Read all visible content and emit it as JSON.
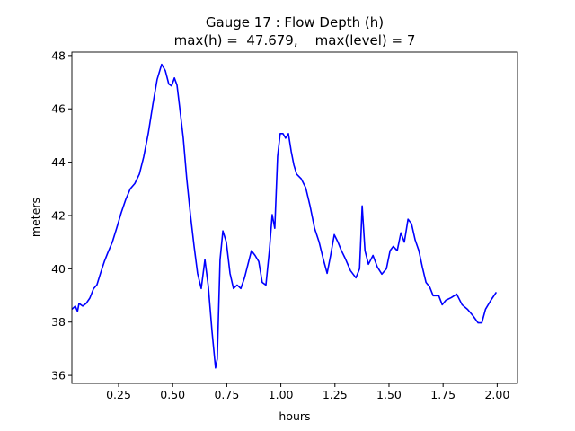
{
  "chart_data": {
    "type": "line",
    "title": [
      "Gauge 17 : Flow Depth (h)",
      "max(h) =  47.679,    max(level) = 7"
    ],
    "xlabel": "hours",
    "ylabel": "meters",
    "xlim": [
      0.034,
      2.094
    ],
    "ylim": [
      35.7,
      48.13
    ],
    "xticks": [
      0.25,
      {
        "value": 0.5,
        "label": "0.50"
      },
      {
        "value": 0.75,
        "label": "0.75"
      },
      {
        "value": 1.0,
        "label": "1.00"
      },
      1.25,
      {
        "value": 1.5,
        "label": "1.50"
      },
      1.75,
      {
        "value": 2.0,
        "label": "2.00"
      }
    ],
    "yticks": [
      36,
      38,
      40,
      42,
      44,
      46,
      48
    ],
    "grid": false,
    "x": [
      0.034,
      0.05,
      0.06,
      0.067,
      0.084,
      0.1,
      0.117,
      0.134,
      0.15,
      0.167,
      0.184,
      0.2,
      0.221,
      0.242,
      0.262,
      0.283,
      0.304,
      0.325,
      0.346,
      0.366,
      0.387,
      0.408,
      0.428,
      0.449,
      0.466,
      0.482,
      0.495,
      0.508,
      0.52,
      0.532,
      0.549,
      0.565,
      0.582,
      0.599,
      0.615,
      0.632,
      0.649,
      0.665,
      0.682,
      0.698,
      0.706,
      0.719,
      0.732,
      0.748,
      0.765,
      0.781,
      0.798,
      0.815,
      0.832,
      0.848,
      0.864,
      0.881,
      0.898,
      0.914,
      0.931,
      0.947,
      0.96,
      0.972,
      0.985,
      0.997,
      1.01,
      1.022,
      1.035,
      1.048,
      1.06,
      1.073,
      1.094,
      1.115,
      1.135,
      1.156,
      1.177,
      1.197,
      1.214,
      1.23,
      1.247,
      1.264,
      1.28,
      1.297,
      1.322,
      1.347,
      1.364,
      1.376,
      1.389,
      1.405,
      1.426,
      1.446,
      1.467,
      1.488,
      1.505,
      1.52,
      1.538,
      1.555,
      1.571,
      1.588,
      1.604,
      1.621,
      1.638,
      1.654,
      1.671,
      1.688,
      1.704,
      1.73,
      1.746,
      1.763,
      1.788,
      1.813,
      1.838,
      1.863,
      1.888,
      1.912,
      1.929,
      1.946,
      1.971,
      1.996
    ],
    "series": [
      {
        "name": "h",
        "color": "#0000ff",
        "values": [
          38.48,
          38.6,
          38.4,
          38.7,
          38.6,
          38.7,
          38.9,
          39.25,
          39.4,
          39.85,
          40.27,
          40.6,
          41.0,
          41.55,
          42.1,
          42.6,
          43.0,
          43.2,
          43.55,
          44.2,
          45.07,
          46.15,
          47.1,
          47.67,
          47.43,
          46.93,
          46.86,
          47.16,
          46.89,
          46.08,
          44.9,
          43.38,
          42.03,
          40.84,
          39.83,
          39.26,
          40.34,
          39.32,
          37.64,
          36.28,
          36.62,
          40.34,
          41.42,
          41.0,
          39.83,
          39.26,
          39.39,
          39.26,
          39.66,
          40.17,
          40.68,
          40.5,
          40.27,
          39.49,
          39.39,
          40.68,
          42.03,
          41.52,
          44.22,
          45.07,
          45.07,
          44.9,
          45.07,
          44.4,
          43.9,
          43.55,
          43.38,
          43.04,
          42.36,
          41.52,
          41.0,
          40.34,
          39.83,
          40.5,
          41.28,
          41.0,
          40.68,
          40.4,
          39.93,
          39.66,
          40.0,
          42.36,
          40.68,
          40.17,
          40.5,
          40.07,
          39.8,
          40.0,
          40.68,
          40.84,
          40.68,
          41.35,
          41.0,
          41.86,
          41.69,
          41.08,
          40.68,
          40.07,
          39.49,
          39.32,
          38.99,
          38.99,
          38.65,
          38.82,
          38.92,
          39.05,
          38.65,
          38.48,
          38.24,
          37.97,
          37.97,
          38.48,
          38.82,
          39.12
        ]
      }
    ]
  }
}
